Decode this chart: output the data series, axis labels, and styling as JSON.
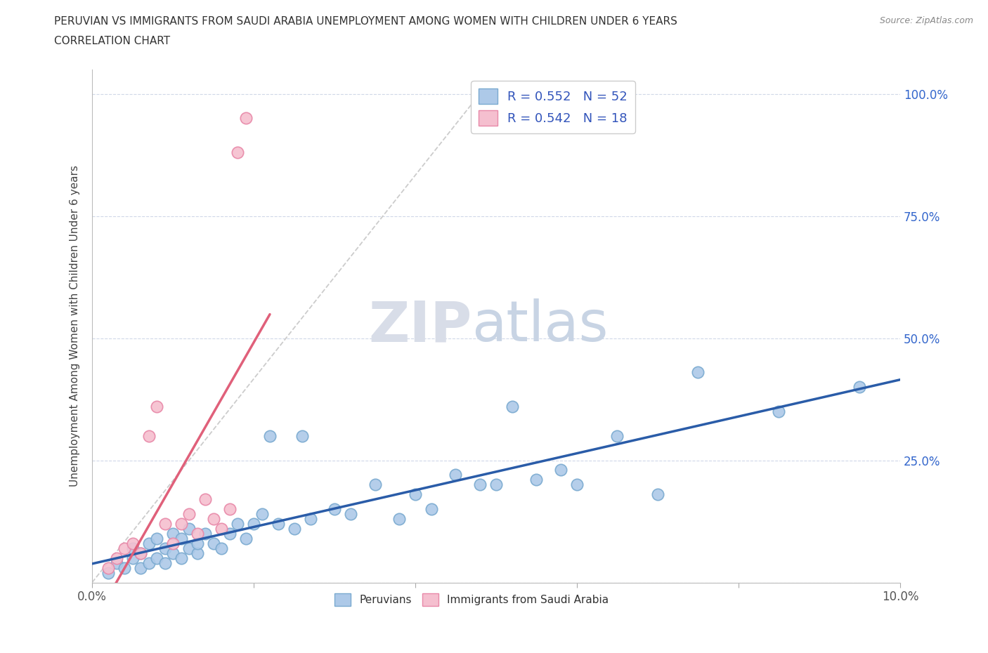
{
  "title_line1": "PERUVIAN VS IMMIGRANTS FROM SAUDI ARABIA UNEMPLOYMENT AMONG WOMEN WITH CHILDREN UNDER 6 YEARS",
  "title_line2": "CORRELATION CHART",
  "source_text": "Source: ZipAtlas.com",
  "ylabel": "Unemployment Among Women with Children Under 6 years",
  "xlim": [
    0.0,
    0.1
  ],
  "ylim": [
    0.0,
    1.05
  ],
  "xticks": [
    0.0,
    0.02,
    0.04,
    0.06,
    0.08,
    0.1
  ],
  "yticks": [
    0.0,
    0.25,
    0.5,
    0.75,
    1.0
  ],
  "ytick_labels": [
    "",
    "25.0%",
    "50.0%",
    "75.0%",
    "100.0%"
  ],
  "xtick_labels": [
    "0.0%",
    "",
    "",
    "",
    "",
    "10.0%"
  ],
  "peruvian_color": "#adc9e8",
  "peruvian_edge_color": "#7aaad0",
  "saudi_color": "#f5bfcf",
  "saudi_edge_color": "#e888a8",
  "trend_peruvian_color": "#2a5ca8",
  "trend_saudi_color": "#e0607a",
  "ref_line_color": "#cccccc",
  "R_peruvian": 0.552,
  "N_peruvian": 52,
  "R_saudi": 0.542,
  "N_saudi": 18,
  "watermark_zip": "ZIP",
  "watermark_atlas": "atlas",
  "legend_text_color": "#3355bb",
  "peruvian_x": [
    0.002,
    0.003,
    0.004,
    0.005,
    0.005,
    0.006,
    0.006,
    0.007,
    0.007,
    0.008,
    0.008,
    0.009,
    0.009,
    0.01,
    0.01,
    0.011,
    0.011,
    0.012,
    0.012,
    0.013,
    0.013,
    0.014,
    0.015,
    0.016,
    0.017,
    0.018,
    0.019,
    0.02,
    0.021,
    0.022,
    0.023,
    0.025,
    0.026,
    0.027,
    0.03,
    0.032,
    0.035,
    0.038,
    0.04,
    0.042,
    0.045,
    0.048,
    0.05,
    0.052,
    0.055,
    0.058,
    0.06,
    0.065,
    0.07,
    0.075,
    0.085,
    0.095
  ],
  "peruvian_y": [
    0.02,
    0.04,
    0.03,
    0.05,
    0.07,
    0.03,
    0.06,
    0.04,
    0.08,
    0.05,
    0.09,
    0.04,
    0.07,
    0.06,
    0.1,
    0.05,
    0.09,
    0.07,
    0.11,
    0.06,
    0.08,
    0.1,
    0.08,
    0.07,
    0.1,
    0.12,
    0.09,
    0.12,
    0.14,
    0.3,
    0.12,
    0.11,
    0.3,
    0.13,
    0.15,
    0.14,
    0.2,
    0.13,
    0.18,
    0.15,
    0.22,
    0.2,
    0.2,
    0.36,
    0.21,
    0.23,
    0.2,
    0.3,
    0.18,
    0.43,
    0.35,
    0.4
  ],
  "saudi_x": [
    0.002,
    0.003,
    0.004,
    0.005,
    0.006,
    0.007,
    0.008,
    0.009,
    0.01,
    0.011,
    0.012,
    0.013,
    0.014,
    0.015,
    0.016,
    0.017,
    0.018,
    0.019
  ],
  "saudi_y": [
    0.03,
    0.05,
    0.07,
    0.08,
    0.06,
    0.3,
    0.36,
    0.12,
    0.08,
    0.12,
    0.14,
    0.1,
    0.17,
    0.13,
    0.11,
    0.15,
    0.88,
    0.95
  ]
}
